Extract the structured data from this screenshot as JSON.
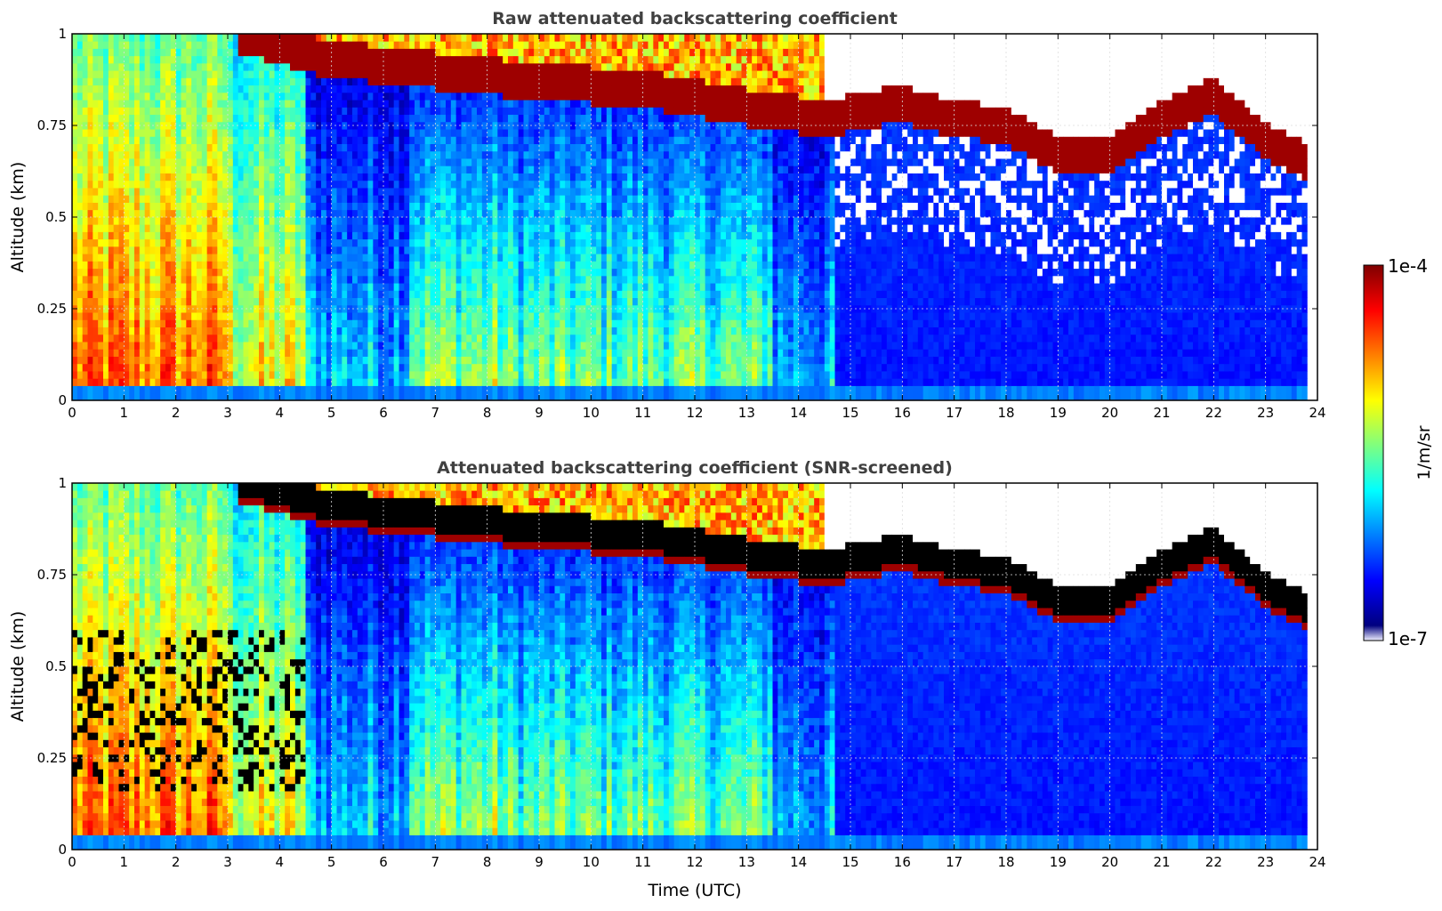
{
  "chart_data": [
    {
      "type": "heatmap",
      "title": "Raw attenuated backscattering coefficient",
      "xlabel": "",
      "ylabel": "Altitude (km)",
      "xlim": [
        0,
        24
      ],
      "ylim": [
        0,
        1
      ],
      "xticks": [
        "0",
        "1",
        "2",
        "3",
        "4",
        "5",
        "6",
        "7",
        "8",
        "9",
        "10",
        "11",
        "12",
        "13",
        "14",
        "15",
        "16",
        "17",
        "18",
        "19",
        "20",
        "21",
        "22",
        "23",
        "24"
      ],
      "yticks": [
        "0",
        "0.25",
        "0.5",
        "0.75",
        "1"
      ],
      "grid": true,
      "cloud_base_km": [
        {
          "t": 3.2,
          "z": 0.95
        },
        {
          "t": 5,
          "z": 0.88
        },
        {
          "t": 7,
          "z": 0.85
        },
        {
          "t": 9,
          "z": 0.82
        },
        {
          "t": 11,
          "z": 0.8
        },
        {
          "t": 13,
          "z": 0.75
        },
        {
          "t": 14.5,
          "z": 0.72
        },
        {
          "t": 16,
          "z": 0.76
        },
        {
          "t": 17,
          "z": 0.72
        },
        {
          "t": 18,
          "z": 0.7
        },
        {
          "t": 19,
          "z": 0.62
        },
        {
          "t": 20,
          "z": 0.62
        },
        {
          "t": 21,
          "z": 0.72
        },
        {
          "t": 22,
          "z": 0.78
        },
        {
          "t": 23,
          "z": 0.66
        },
        {
          "t": 23.8,
          "z": 0.6
        }
      ]
    },
    {
      "type": "heatmap",
      "title": "Attenuated backscattering coefficient (SNR-screened)",
      "xlabel": "Time (UTC)",
      "ylabel": "Altitude (km)",
      "xlim": [
        0,
        24
      ],
      "ylim": [
        0,
        1
      ],
      "xticks": [
        "0",
        "1",
        "2",
        "3",
        "4",
        "5",
        "6",
        "7",
        "8",
        "9",
        "10",
        "11",
        "12",
        "13",
        "14",
        "15",
        "16",
        "17",
        "18",
        "19",
        "20",
        "21",
        "22",
        "23",
        "24"
      ],
      "yticks": [
        "0",
        "0.25",
        "0.5",
        "0.75",
        "1"
      ],
      "grid": true
    }
  ],
  "colorbar": {
    "label": "1/m/sr",
    "max_label": "1e-4",
    "min_label": "1e-7",
    "colormap": [
      "#00007f",
      "#0000ff",
      "#007fff",
      "#00ffff",
      "#7fff7f",
      "#ffff00",
      "#ff7f00",
      "#ff0000",
      "#7f0000"
    ]
  }
}
